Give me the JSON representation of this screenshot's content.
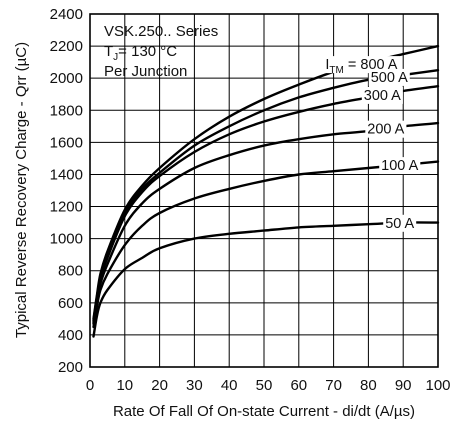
{
  "chart_data": {
    "type": "line",
    "title": "",
    "xlabel": "Rate Of Fall Of On-state Current - di/dt (A/µs)",
    "ylabel": "Typical Reverse Recovery Charge - Qrr (µC)",
    "xlim": [
      0,
      100
    ],
    "ylim": [
      200,
      2400
    ],
    "xticks": [
      0,
      10,
      20,
      30,
      40,
      50,
      60,
      70,
      80,
      90,
      100
    ],
    "yticks": [
      200,
      400,
      600,
      800,
      1000,
      1200,
      1400,
      1600,
      1800,
      2000,
      2200,
      2400
    ],
    "grid": true,
    "annotations": [
      "VSK.250.. Series",
      "T",
      "J",
      "= 130 °C",
      "Per Junction"
    ],
    "series": [
      {
        "name": "I",
        "sub": "TM",
        "suffix": " = 800 A",
        "x": [
          1,
          2,
          3,
          5,
          10,
          15,
          20,
          30,
          40,
          50,
          60,
          70,
          80,
          90,
          100
        ],
        "values": [
          500,
          650,
          780,
          920,
          1180,
          1330,
          1440,
          1620,
          1760,
          1870,
          1960,
          2040,
          2100,
          2150,
          2200
        ]
      },
      {
        "name": "500 A",
        "x": [
          1,
          2,
          3,
          5,
          10,
          15,
          20,
          30,
          40,
          50,
          60,
          70,
          80,
          90,
          100
        ],
        "values": [
          490,
          640,
          760,
          900,
          1160,
          1310,
          1410,
          1580,
          1700,
          1800,
          1880,
          1940,
          1990,
          2020,
          2050
        ]
      },
      {
        "name": "300 A",
        "x": [
          1,
          2,
          3,
          5,
          10,
          15,
          20,
          30,
          40,
          50,
          60,
          70,
          80,
          90,
          100
        ],
        "values": [
          480,
          630,
          750,
          880,
          1140,
          1290,
          1390,
          1540,
          1650,
          1730,
          1790,
          1840,
          1880,
          1920,
          1950
        ]
      },
      {
        "name": "200 A",
        "x": [
          1,
          2,
          3,
          5,
          10,
          15,
          20,
          30,
          40,
          50,
          60,
          70,
          80,
          90,
          100
        ],
        "values": [
          470,
          610,
          720,
          840,
          1080,
          1220,
          1310,
          1440,
          1520,
          1580,
          1620,
          1650,
          1670,
          1700,
          1720
        ]
      },
      {
        "name": "100 A",
        "x": [
          1,
          2,
          3,
          5,
          10,
          15,
          20,
          30,
          40,
          50,
          60,
          70,
          80,
          90,
          100
        ],
        "values": [
          450,
          580,
          680,
          780,
          960,
          1080,
          1160,
          1250,
          1310,
          1360,
          1400,
          1420,
          1440,
          1460,
          1480
        ]
      },
      {
        "name": "50 A",
        "x": [
          1,
          2,
          3,
          5,
          10,
          15,
          20,
          30,
          40,
          50,
          60,
          70,
          80,
          90,
          100
        ],
        "values": [
          390,
          520,
          600,
          680,
          810,
          880,
          940,
          1000,
          1030,
          1050,
          1070,
          1080,
          1090,
          1100,
          1100
        ]
      }
    ]
  }
}
